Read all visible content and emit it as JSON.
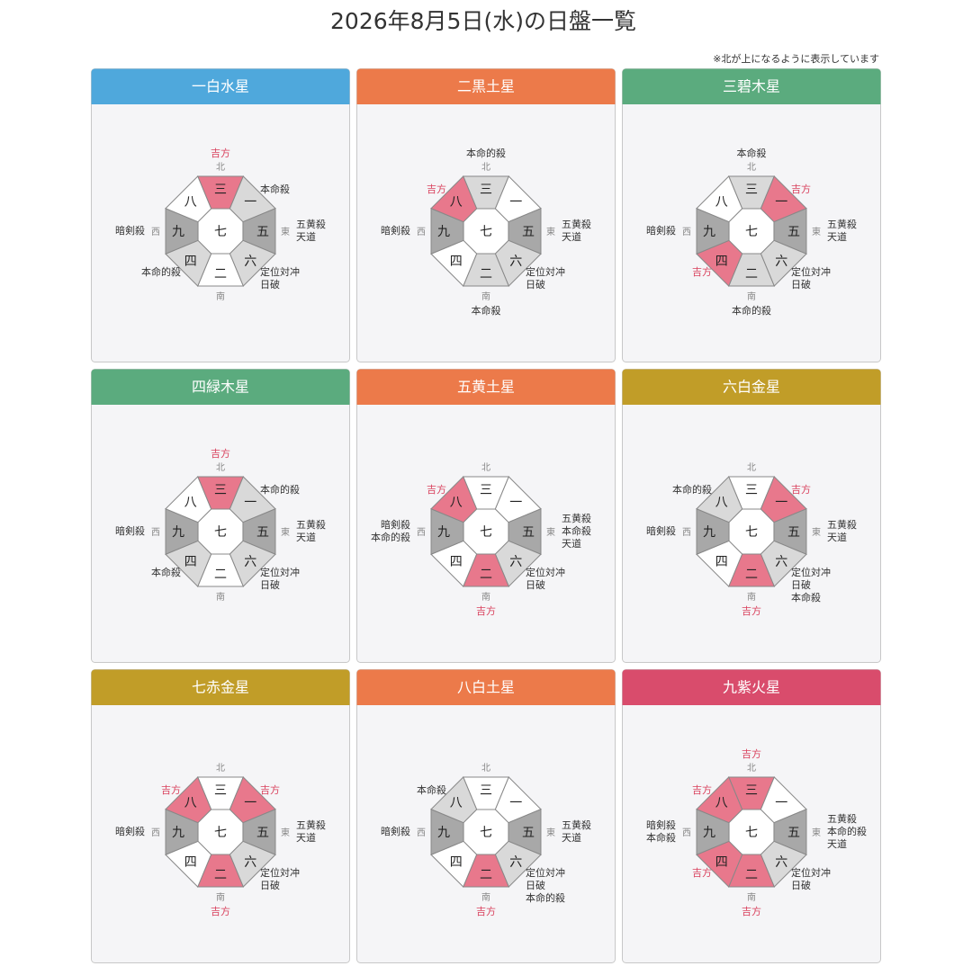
{
  "title": "2026年8月5日(水)の日盤一覧",
  "note": "※北が上になるように表示しています",
  "compass": {
    "north": "北",
    "east": "東",
    "south": "南",
    "west": "西"
  },
  "panels": [
    {
      "name": "一白水星",
      "color": "#4fa8dc",
      "center": "七",
      "sectors": [
        {
          "num": "三",
          "fill": "#e8788c",
          "labels": [
            {
              "text": "吉方",
              "color": "#d9425e"
            }
          ]
        },
        {
          "num": "一",
          "fill": "#d9d9d9",
          "labels": [
            {
              "text": "本命殺",
              "color": "#333"
            }
          ]
        },
        {
          "num": "五",
          "fill": "#a8a8a8",
          "labels": [
            {
              "text": "五黄殺",
              "color": "#333"
            },
            {
              "text": "天道",
              "color": "#333"
            }
          ]
        },
        {
          "num": "六",
          "fill": "#d9d9d9",
          "labels": [
            {
              "text": "定位対冲",
              "color": "#333"
            },
            {
              "text": "日破",
              "color": "#333"
            }
          ]
        },
        {
          "num": "二",
          "fill": "#ffffff",
          "labels": []
        },
        {
          "num": "四",
          "fill": "#d9d9d9",
          "labels": [
            {
              "text": "本命的殺",
              "color": "#333"
            }
          ]
        },
        {
          "num": "九",
          "fill": "#a8a8a8",
          "labels": [
            {
              "text": "暗剣殺",
              "color": "#333"
            }
          ]
        },
        {
          "num": "八",
          "fill": "#ffffff",
          "labels": []
        }
      ]
    },
    {
      "name": "二黒土星",
      "color": "#ec7a4a",
      "center": "七",
      "sectors": [
        {
          "num": "三",
          "fill": "#d9d9d9",
          "labels": [
            {
              "text": "本命的殺",
              "color": "#333"
            }
          ]
        },
        {
          "num": "一",
          "fill": "#ffffff",
          "labels": []
        },
        {
          "num": "五",
          "fill": "#a8a8a8",
          "labels": [
            {
              "text": "五黄殺",
              "color": "#333"
            },
            {
              "text": "天道",
              "color": "#333"
            }
          ]
        },
        {
          "num": "六",
          "fill": "#d9d9d9",
          "labels": [
            {
              "text": "定位対冲",
              "color": "#333"
            },
            {
              "text": "日破",
              "color": "#333"
            }
          ]
        },
        {
          "num": "二",
          "fill": "#d9d9d9",
          "labels": [
            {
              "text": "本命殺",
              "color": "#333"
            }
          ]
        },
        {
          "num": "四",
          "fill": "#ffffff",
          "labels": []
        },
        {
          "num": "九",
          "fill": "#a8a8a8",
          "labels": [
            {
              "text": "暗剣殺",
              "color": "#333"
            }
          ]
        },
        {
          "num": "八",
          "fill": "#e8788c",
          "labels": [
            {
              "text": "吉方",
              "color": "#d9425e"
            }
          ]
        }
      ]
    },
    {
      "name": "三碧木星",
      "color": "#5bab7e",
      "center": "七",
      "sectors": [
        {
          "num": "三",
          "fill": "#d9d9d9",
          "labels": [
            {
              "text": "本命殺",
              "color": "#333"
            }
          ]
        },
        {
          "num": "一",
          "fill": "#e8788c",
          "labels": [
            {
              "text": "吉方",
              "color": "#d9425e"
            }
          ]
        },
        {
          "num": "五",
          "fill": "#a8a8a8",
          "labels": [
            {
              "text": "五黄殺",
              "color": "#333"
            },
            {
              "text": "天道",
              "color": "#333"
            }
          ]
        },
        {
          "num": "六",
          "fill": "#d9d9d9",
          "labels": [
            {
              "text": "定位対冲",
              "color": "#333"
            },
            {
              "text": "日破",
              "color": "#333"
            }
          ]
        },
        {
          "num": "二",
          "fill": "#d9d9d9",
          "labels": [
            {
              "text": "本命的殺",
              "color": "#333"
            }
          ]
        },
        {
          "num": "四",
          "fill": "#e8788c",
          "labels": [
            {
              "text": "吉方",
              "color": "#d9425e"
            }
          ]
        },
        {
          "num": "九",
          "fill": "#a8a8a8",
          "labels": [
            {
              "text": "暗剣殺",
              "color": "#333"
            }
          ]
        },
        {
          "num": "八",
          "fill": "#ffffff",
          "labels": []
        }
      ]
    },
    {
      "name": "四緑木星",
      "color": "#5bab7e",
      "center": "七",
      "sectors": [
        {
          "num": "三",
          "fill": "#e8788c",
          "labels": [
            {
              "text": "吉方",
              "color": "#d9425e"
            }
          ]
        },
        {
          "num": "一",
          "fill": "#d9d9d9",
          "labels": [
            {
              "text": "本命的殺",
              "color": "#333"
            }
          ]
        },
        {
          "num": "五",
          "fill": "#a8a8a8",
          "labels": [
            {
              "text": "五黄殺",
              "color": "#333"
            },
            {
              "text": "天道",
              "color": "#333"
            }
          ]
        },
        {
          "num": "六",
          "fill": "#d9d9d9",
          "labels": [
            {
              "text": "定位対冲",
              "color": "#333"
            },
            {
              "text": "日破",
              "color": "#333"
            }
          ]
        },
        {
          "num": "二",
          "fill": "#ffffff",
          "labels": []
        },
        {
          "num": "四",
          "fill": "#d9d9d9",
          "labels": [
            {
              "text": "本命殺",
              "color": "#333"
            }
          ]
        },
        {
          "num": "九",
          "fill": "#a8a8a8",
          "labels": [
            {
              "text": "暗剣殺",
              "color": "#333"
            }
          ]
        },
        {
          "num": "八",
          "fill": "#ffffff",
          "labels": []
        }
      ]
    },
    {
      "name": "五黄土星",
      "color": "#ec7a4a",
      "center": "七",
      "sectors": [
        {
          "num": "三",
          "fill": "#ffffff",
          "labels": []
        },
        {
          "num": "一",
          "fill": "#ffffff",
          "labels": []
        },
        {
          "num": "五",
          "fill": "#a8a8a8",
          "labels": [
            {
              "text": "五黄殺",
              "color": "#333"
            },
            {
              "text": "本命殺",
              "color": "#333"
            },
            {
              "text": "天道",
              "color": "#333"
            }
          ]
        },
        {
          "num": "六",
          "fill": "#d9d9d9",
          "labels": [
            {
              "text": "定位対冲",
              "color": "#333"
            },
            {
              "text": "日破",
              "color": "#333"
            }
          ]
        },
        {
          "num": "二",
          "fill": "#e8788c",
          "labels": [
            {
              "text": "吉方",
              "color": "#d9425e"
            }
          ]
        },
        {
          "num": "四",
          "fill": "#ffffff",
          "labels": []
        },
        {
          "num": "九",
          "fill": "#a8a8a8",
          "labels": [
            {
              "text": "暗剣殺",
              "color": "#333"
            },
            {
              "text": "本命的殺",
              "color": "#333"
            }
          ]
        },
        {
          "num": "八",
          "fill": "#e8788c",
          "labels": [
            {
              "text": "吉方",
              "color": "#d9425e"
            }
          ]
        }
      ]
    },
    {
      "name": "六白金星",
      "color": "#c19d28",
      "center": "七",
      "sectors": [
        {
          "num": "三",
          "fill": "#ffffff",
          "labels": []
        },
        {
          "num": "一",
          "fill": "#e8788c",
          "labels": [
            {
              "text": "吉方",
              "color": "#d9425e"
            }
          ]
        },
        {
          "num": "五",
          "fill": "#a8a8a8",
          "labels": [
            {
              "text": "五黄殺",
              "color": "#333"
            },
            {
              "text": "天道",
              "color": "#333"
            }
          ]
        },
        {
          "num": "六",
          "fill": "#d9d9d9",
          "labels": [
            {
              "text": "定位対冲",
              "color": "#333"
            },
            {
              "text": "日破",
              "color": "#333"
            },
            {
              "text": "本命殺",
              "color": "#333"
            }
          ]
        },
        {
          "num": "二",
          "fill": "#e8788c",
          "labels": [
            {
              "text": "吉方",
              "color": "#d9425e"
            }
          ]
        },
        {
          "num": "四",
          "fill": "#ffffff",
          "labels": []
        },
        {
          "num": "九",
          "fill": "#a8a8a8",
          "labels": [
            {
              "text": "暗剣殺",
              "color": "#333"
            }
          ]
        },
        {
          "num": "八",
          "fill": "#d9d9d9",
          "labels": [
            {
              "text": "本命的殺",
              "color": "#333"
            }
          ]
        }
      ]
    },
    {
      "name": "七赤金星",
      "color": "#c19d28",
      "center": "七",
      "sectors": [
        {
          "num": "三",
          "fill": "#ffffff",
          "labels": []
        },
        {
          "num": "一",
          "fill": "#e8788c",
          "labels": [
            {
              "text": "吉方",
              "color": "#d9425e"
            }
          ]
        },
        {
          "num": "五",
          "fill": "#a8a8a8",
          "labels": [
            {
              "text": "五黄殺",
              "color": "#333"
            },
            {
              "text": "天道",
              "color": "#333"
            }
          ]
        },
        {
          "num": "六",
          "fill": "#d9d9d9",
          "labels": [
            {
              "text": "定位対冲",
              "color": "#333"
            },
            {
              "text": "日破",
              "color": "#333"
            }
          ]
        },
        {
          "num": "二",
          "fill": "#e8788c",
          "labels": [
            {
              "text": "吉方",
              "color": "#d9425e"
            }
          ]
        },
        {
          "num": "四",
          "fill": "#ffffff",
          "labels": []
        },
        {
          "num": "九",
          "fill": "#a8a8a8",
          "labels": [
            {
              "text": "暗剣殺",
              "color": "#333"
            }
          ]
        },
        {
          "num": "八",
          "fill": "#e8788c",
          "labels": [
            {
              "text": "吉方",
              "color": "#d9425e"
            }
          ]
        }
      ]
    },
    {
      "name": "八白土星",
      "color": "#ec7a4a",
      "center": "七",
      "sectors": [
        {
          "num": "三",
          "fill": "#ffffff",
          "labels": []
        },
        {
          "num": "一",
          "fill": "#ffffff",
          "labels": []
        },
        {
          "num": "五",
          "fill": "#a8a8a8",
          "labels": [
            {
              "text": "五黄殺",
              "color": "#333"
            },
            {
              "text": "天道",
              "color": "#333"
            }
          ]
        },
        {
          "num": "六",
          "fill": "#d9d9d9",
          "labels": [
            {
              "text": "定位対冲",
              "color": "#333"
            },
            {
              "text": "日破",
              "color": "#333"
            },
            {
              "text": "本命的殺",
              "color": "#333"
            }
          ]
        },
        {
          "num": "二",
          "fill": "#e8788c",
          "labels": [
            {
              "text": "吉方",
              "color": "#d9425e"
            }
          ]
        },
        {
          "num": "四",
          "fill": "#ffffff",
          "labels": []
        },
        {
          "num": "九",
          "fill": "#a8a8a8",
          "labels": [
            {
              "text": "暗剣殺",
              "color": "#333"
            }
          ]
        },
        {
          "num": "八",
          "fill": "#d9d9d9",
          "labels": [
            {
              "text": "本命殺",
              "color": "#333"
            }
          ]
        }
      ]
    },
    {
      "name": "九紫火星",
      "color": "#d94c6c",
      "center": "七",
      "sectors": [
        {
          "num": "三",
          "fill": "#e8788c",
          "labels": [
            {
              "text": "吉方",
              "color": "#d9425e"
            }
          ]
        },
        {
          "num": "一",
          "fill": "#ffffff",
          "labels": []
        },
        {
          "num": "五",
          "fill": "#a8a8a8",
          "labels": [
            {
              "text": "五黄殺",
              "color": "#333"
            },
            {
              "text": "本命的殺",
              "color": "#333"
            },
            {
              "text": "天道",
              "color": "#333"
            }
          ]
        },
        {
          "num": "六",
          "fill": "#d9d9d9",
          "labels": [
            {
              "text": "定位対冲",
              "color": "#333"
            },
            {
              "text": "日破",
              "color": "#333"
            }
          ]
        },
        {
          "num": "二",
          "fill": "#e8788c",
          "labels": [
            {
              "text": "吉方",
              "color": "#d9425e"
            }
          ]
        },
        {
          "num": "四",
          "fill": "#e8788c",
          "labels": [
            {
              "text": "吉方",
              "color": "#d9425e"
            }
          ]
        },
        {
          "num": "九",
          "fill": "#a8a8a8",
          "labels": [
            {
              "text": "暗剣殺",
              "color": "#333"
            },
            {
              "text": "本命殺",
              "color": "#333"
            }
          ]
        },
        {
          "num": "八",
          "fill": "#e8788c",
          "labels": [
            {
              "text": "吉方",
              "color": "#d9425e"
            }
          ]
        }
      ]
    }
  ]
}
